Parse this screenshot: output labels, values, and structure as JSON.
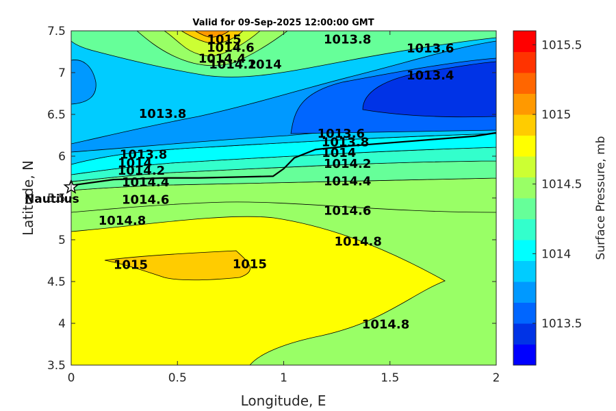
{
  "chart_data": {
    "type": "contourf",
    "title": "Valid for 09-Sep-2025 12:00:00 GMT",
    "xlabel": "Longitude, E",
    "ylabel": "Latitude, N",
    "xlim": [
      0,
      2
    ],
    "ylim": [
      3.5,
      7.5
    ],
    "x_ticks": [
      "0",
      "0.5",
      "1",
      "1.5",
      "2"
    ],
    "y_ticks": [
      "3.5",
      "4",
      "4.5",
      "5",
      "5.5",
      "6",
      "6.5",
      "7",
      "7.5"
    ],
    "x_values": [
      0,
      0.5,
      1,
      1.5,
      2
    ],
    "y_values": [
      3.5,
      4,
      4.5,
      5,
      5.5,
      6,
      6.5,
      7,
      7.5
    ],
    "colorbar": {
      "label": "Surface Pressure, mb",
      "range": [
        1013.2,
        1015.6
      ],
      "ticks": [
        "1013.5",
        "1014",
        "1014.5",
        "1015",
        "1015.5"
      ],
      "tick_values": [
        1013.5,
        1014,
        1014.5,
        1015,
        1015.5
      ],
      "colors": [
        "#0000ff",
        "#0033e6",
        "#0066ff",
        "#0099ff",
        "#00ccff",
        "#00ffff",
        "#33ffcc",
        "#66ff99",
        "#99ff66",
        "#ccff33",
        "#ffff00",
        "#ffcc00",
        "#ff9900",
        "#ff6600",
        "#ff3300",
        "#ff0000"
      ]
    },
    "contour_levels": [
      1013.4,
      1013.6,
      1013.8,
      1014,
      1014.2,
      1014.4,
      1014.6,
      1014.8,
      1015
    ],
    "contour_labels": [
      {
        "text": "1015",
        "x": 0.72,
        "y": 7.35
      },
      {
        "text": "1014.6",
        "x": 0.75,
        "y": 7.25
      },
      {
        "text": "1014.4",
        "x": 0.71,
        "y": 7.12
      },
      {
        "text": "1014.2",
        "x": 0.76,
        "y": 7.05
      },
      {
        "text": "1014",
        "x": 0.91,
        "y": 7.05
      },
      {
        "text": "1013.8",
        "x": 1.3,
        "y": 7.35
      },
      {
        "text": "1013.6",
        "x": 1.69,
        "y": 7.24
      },
      {
        "text": "1013.4",
        "x": 1.69,
        "y": 6.92
      },
      {
        "text": "1013.8",
        "x": 0.43,
        "y": 6.46
      },
      {
        "text": "1013.6",
        "x": 1.27,
        "y": 6.22
      },
      {
        "text": "1013.8",
        "x": 1.29,
        "y": 6.12
      },
      {
        "text": "1014",
        "x": 1.26,
        "y": 5.99
      },
      {
        "text": "1014.2",
        "x": 1.3,
        "y": 5.86
      },
      {
        "text": "1014.4",
        "x": 1.3,
        "y": 5.65
      },
      {
        "text": "1014.6",
        "x": 1.3,
        "y": 5.3
      },
      {
        "text": "1014.8",
        "x": 1.35,
        "y": 4.93
      },
      {
        "text": "1013.8",
        "x": 0.34,
        "y": 5.97
      },
      {
        "text": "1014",
        "x": 0.3,
        "y": 5.87
      },
      {
        "text": "1014.2",
        "x": 0.33,
        "y": 5.78
      },
      {
        "text": "1014.4",
        "x": 0.35,
        "y": 5.64
      },
      {
        "text": "1014.6",
        "x": 0.35,
        "y": 5.43
      },
      {
        "text": "1014.8",
        "x": 0.24,
        "y": 5.18
      },
      {
        "text": "1015",
        "x": 0.28,
        "y": 4.65
      },
      {
        "text": "1015",
        "x": 0.84,
        "y": 4.66
      },
      {
        "text": "1014.8",
        "x": 1.48,
        "y": 3.94
      }
    ],
    "track": {
      "x": [
        0,
        0.2,
        0.45,
        0.6,
        0.95,
        1.0,
        1.05,
        1.15,
        1.3,
        1.6,
        1.9,
        2.0
      ],
      "y": [
        5.65,
        5.72,
        5.74,
        5.74,
        5.76,
        5.85,
        5.98,
        6.08,
        6.12,
        6.18,
        6.24,
        6.28
      ]
    },
    "station": {
      "name": "Nautilus",
      "x": 0.0,
      "y": 5.63
    }
  }
}
